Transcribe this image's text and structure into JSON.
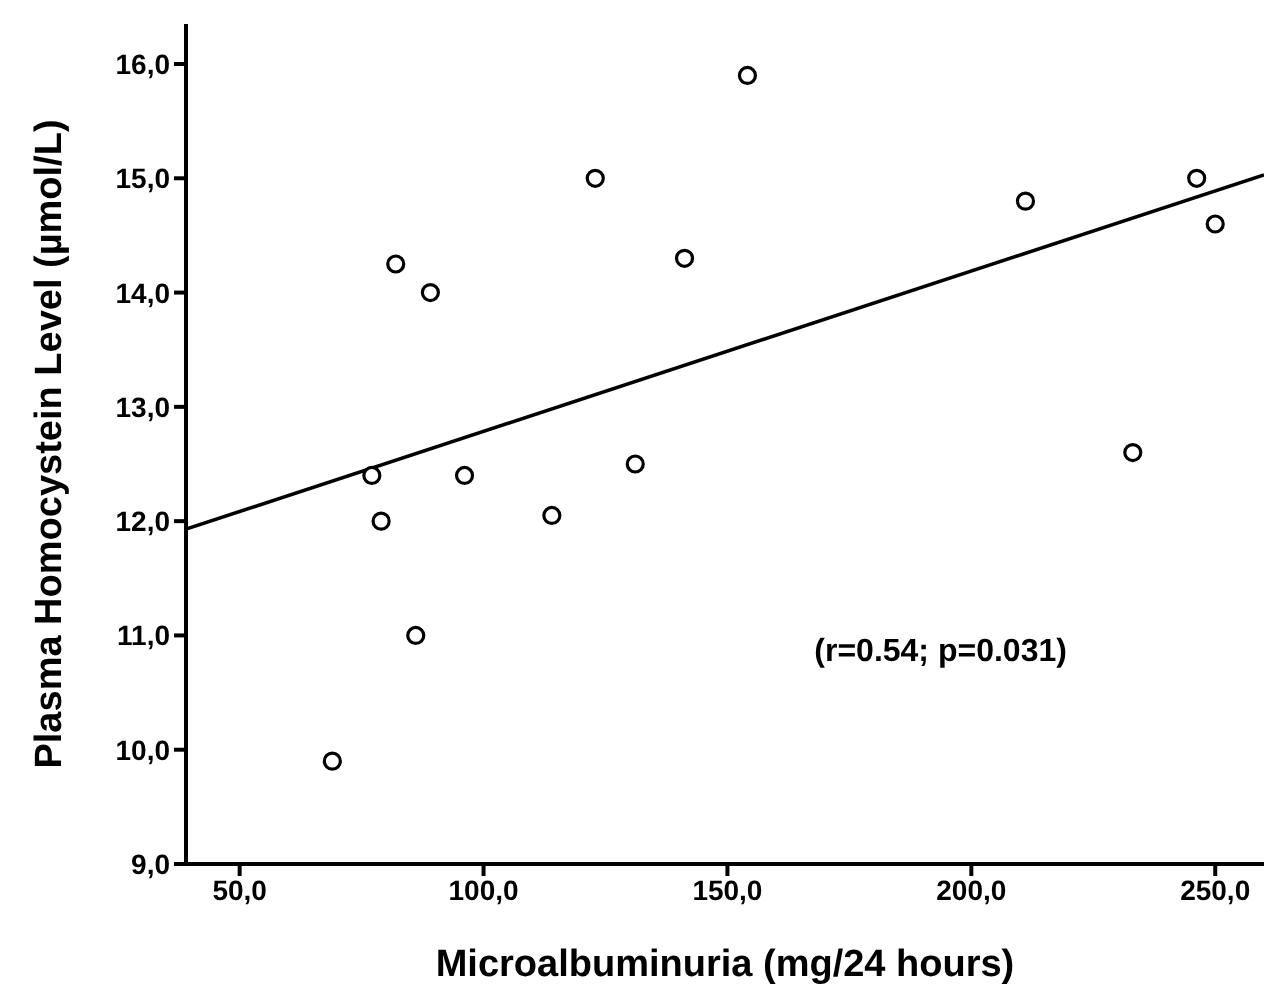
{
  "chart_data": {
    "type": "scatter",
    "xlabel": "Microalbuminuria (mg/24 hours)",
    "ylabel": "Plasma Homocystein Level (µmol/L)",
    "series": [
      {
        "color": "#000000",
        "marker": "circle",
        "x": [
          69.0,
          77.1,
          79.0,
          82.0,
          86.1,
          89.1,
          96.1,
          114.0,
          122.9,
          131.1,
          141.2,
          154.1,
          211.1,
          233.1,
          246.2,
          250.0
        ],
        "values": [
          9.9,
          12.4,
          12.0,
          14.25,
          11.0,
          14.0,
          12.4,
          12.05,
          15.0,
          12.5,
          14.3,
          15.9,
          14.8,
          12.6,
          15.0,
          14.6
        ]
      },
      {
        "type": "line",
        "color": "#000000",
        "marker": "none",
        "line_style": "solid",
        "x": [
          39,
          260
        ],
        "values": [
          11.93,
          15.03
        ]
      }
    ],
    "xlim": [
      39,
      260
    ],
    "xticks": [
      {
        "value": 50,
        "label": "50,0"
      },
      {
        "value": 100,
        "label": "100,0"
      },
      {
        "value": 150,
        "label": "150,0"
      },
      {
        "value": 200,
        "label": "200,0"
      },
      {
        "value": 250,
        "label": "250,0"
      }
    ],
    "ylim": [
      9,
      16.35
    ],
    "yticks": [
      {
        "value": 9,
        "label": "9,0"
      },
      {
        "value": 10,
        "label": "10,0"
      },
      {
        "value": 11,
        "label": "11,0"
      },
      {
        "value": 12,
        "label": "12,0"
      },
      {
        "value": 13,
        "label": "13,0"
      },
      {
        "value": 14,
        "label": "14,0"
      },
      {
        "value": 15,
        "label": "15,0"
      },
      {
        "value": 16,
        "label": "16,0"
      }
    ],
    "grid": false,
    "legend": false,
    "annotations": [
      "(r=0.54; p=0.031)"
    ]
  }
}
